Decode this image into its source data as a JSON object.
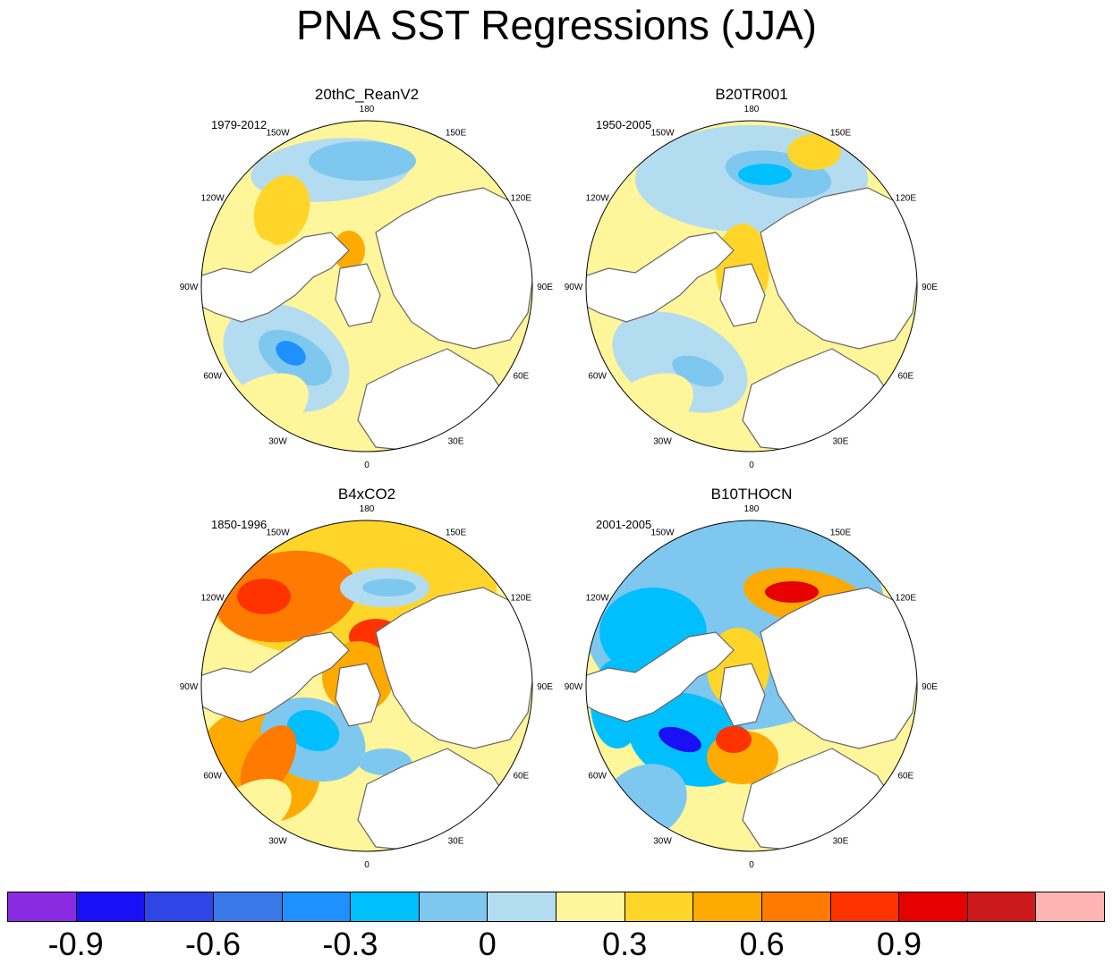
{
  "title": "PNA SST Regressions (JJA)",
  "panels": [
    {
      "name": "20thC_ReanV2",
      "period": "1979-2012"
    },
    {
      "name": "B20TR001",
      "period": "1950-2005"
    },
    {
      "name": "B4xCO2",
      "period": "1850-1996"
    },
    {
      "name": "B10THOCN",
      "period": "2001-2005"
    }
  ],
  "lon_labels": [
    "180",
    "150E",
    "120E",
    "90E",
    "60E",
    "30E",
    "0",
    "30W",
    "60W",
    "90W",
    "120W",
    "150W"
  ],
  "colorbar": {
    "colors": [
      "#8a2be2",
      "#1a10f5",
      "#2e46e6",
      "#3a78e8",
      "#1e90ff",
      "#00bfff",
      "#7ec8f0",
      "#b4dcf0",
      "#fff59a",
      "#ffd52a",
      "#ffaa00",
      "#ff7a00",
      "#ff3300",
      "#e60000",
      "#cc1a1a",
      "#ffb3b3"
    ],
    "labels": [
      "-0.9",
      "-0.6",
      "-0.3",
      "0",
      "0.3",
      "0.6",
      "0.9"
    ],
    "label_boundaries": [
      1,
      3,
      5,
      7,
      9,
      11,
      13
    ]
  }
}
